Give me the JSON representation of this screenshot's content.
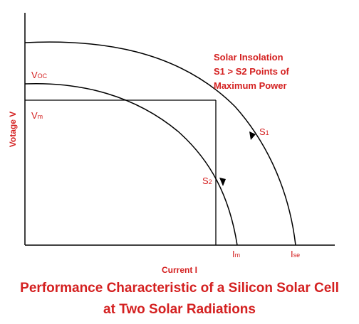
{
  "labels": {
    "voc_main": "V",
    "voc_sub": "OC",
    "vm_main": "V",
    "vm_sub": "m",
    "y_axis": "Votage V",
    "x_axis": "Current I",
    "im_main": "I",
    "im_sub": "m",
    "ise_main": "I",
    "ise_sub": "se",
    "s1_main": "S",
    "s1_sub": "1",
    "s2_main": "S",
    "s2_sub": "2"
  },
  "annotation": {
    "line1": "Solar Insolation",
    "line2": "S1 > S2 Points of",
    "line3": "Maximum Power"
  },
  "caption": {
    "line1": "Performance Characteristic of a Silicon Solar Cell",
    "line2": "at Two Solar Radiations"
  },
  "colors": {
    "label": "#d42020",
    "line": "#000000"
  }
}
